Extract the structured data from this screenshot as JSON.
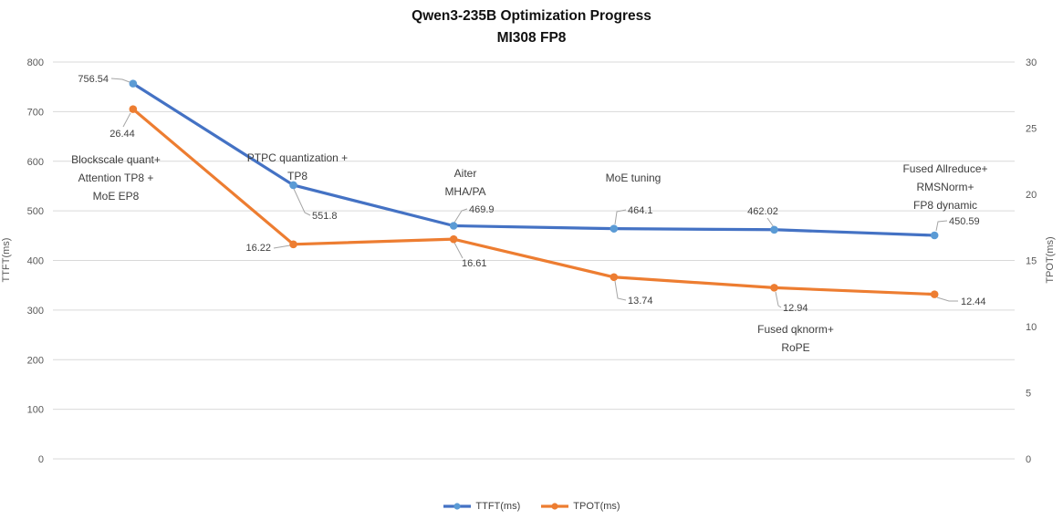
{
  "title": {
    "line1": "Qwen3-235B Optimization Progress",
    "line2": "MI308 FP8"
  },
  "chart_data": {
    "type": "line",
    "title": "Qwen3-235B Optimization Progress MI308 FP8",
    "categories": [
      "Blockscale quant+\nAttention TP8 +\nMoE EP8",
      "PTPC quantization +\nTP8",
      "Aiter\nMHA/PA",
      "MoE tuning",
      "Fused qknorm+\nRoPE",
      "Fused Allreduce+\nRMSNorm+\nFP8 dynamic"
    ],
    "series": [
      {
        "name": "TTFT(ms)",
        "axis": "left",
        "color": "#4472C4",
        "marker_color": "#5B9BD5",
        "values": [
          756.54,
          551.8,
          469.9,
          464.1,
          462.02,
          450.59
        ],
        "data_labels": [
          "756.54",
          "551.8",
          "469.9",
          "464.1",
          "462.02",
          "450.59"
        ]
      },
      {
        "name": "TPOT(ms)",
        "axis": "right",
        "color": "#ED7D31",
        "marker_color": "#ED7D31",
        "values": [
          26.44,
          16.22,
          16.61,
          13.74,
          12.94,
          12.44
        ],
        "data_labels": [
          "26.44",
          "16.22",
          "16.61",
          "13.74",
          "12.94",
          "12.44"
        ]
      }
    ],
    "left_axis": {
      "title": "TTFT(ms)",
      "min": 0,
      "max": 800,
      "step": 100,
      "ticks": [
        "0",
        "100",
        "200",
        "300",
        "400",
        "500",
        "600",
        "700",
        "800"
      ]
    },
    "right_axis": {
      "title": "TPOT(ms)",
      "min": 0,
      "max": 30,
      "step": 5,
      "ticks": [
        "0",
        "5",
        "10",
        "15",
        "20",
        "25",
        "30"
      ]
    },
    "legend": {
      "position": "bottom",
      "entries": [
        "TTFT(ms)",
        "TPOT(ms)"
      ]
    },
    "grid": true,
    "colors": {
      "gridline": "#D9D9D9",
      "tick_text": "#595959",
      "label_text": "#404040",
      "leader": "#A6A6A6",
      "background": "#FFFFFF"
    }
  }
}
